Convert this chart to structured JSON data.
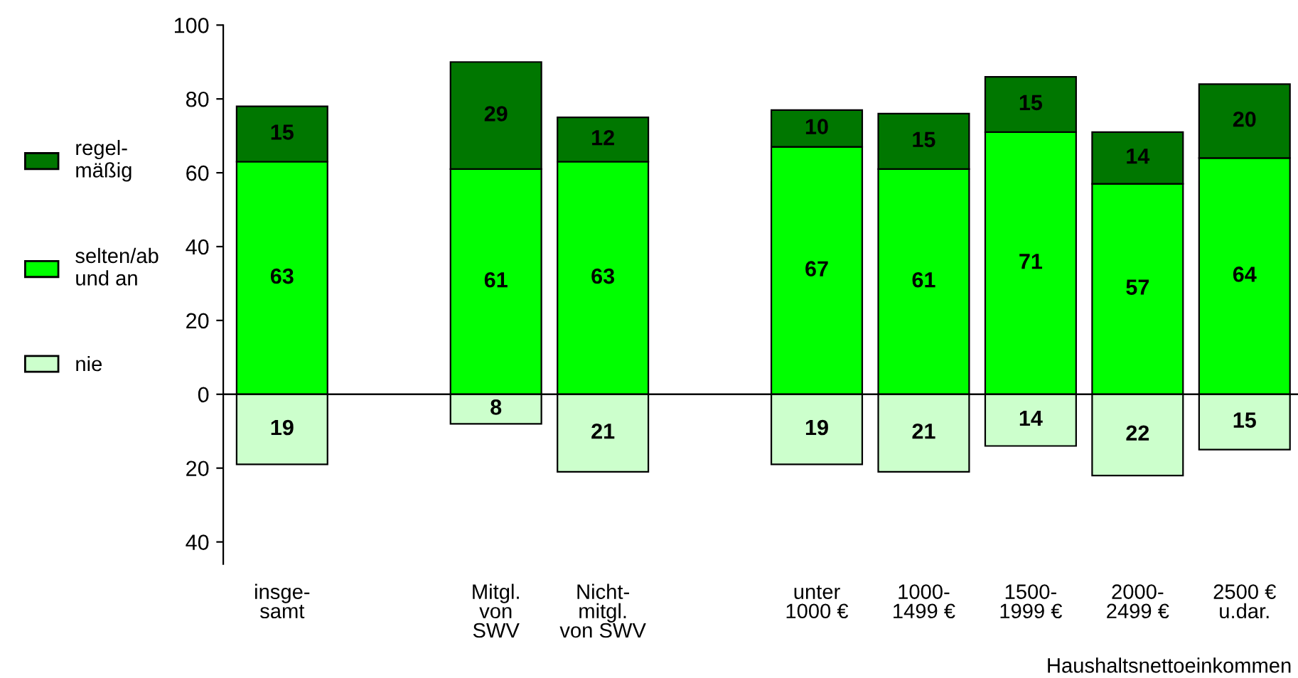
{
  "chart_data": {
    "type": "bar",
    "stacked": true,
    "categories": [
      "insge-\nsamt",
      null,
      "Mitgl.\nvon\nSWV",
      "Nicht-\nmitgl.\nvon SWV",
      null,
      "unter\n1000 €",
      "1000-\n1499 €",
      "1500-\n1999 €",
      "2000-\n2499 €",
      "2500 €\nu.dar."
    ],
    "series": [
      {
        "name": "nie",
        "color": "#ccffcc",
        "base": [
          -19,
          null,
          -8,
          -21,
          null,
          -19,
          -21,
          -14,
          -22,
          -15
        ],
        "values": [
          19,
          null,
          8,
          21,
          null,
          19,
          21,
          14,
          22,
          15
        ],
        "value_labels": [
          "19",
          null,
          "8",
          "21",
          null,
          "19",
          "21",
          "14",
          "22",
          "15"
        ]
      },
      {
        "name": "selten/ab\nund an",
        "color": "#00ff00",
        "values": [
          63,
          null,
          61,
          63,
          null,
          67,
          61,
          71,
          57,
          64
        ],
        "value_labels": [
          "63",
          null,
          "61",
          "63",
          null,
          "67",
          "61",
          "71",
          "57",
          "64"
        ]
      },
      {
        "name": "regel-\nmäßig",
        "color": "#007700",
        "values": [
          15,
          null,
          29,
          12,
          null,
          10,
          15,
          15,
          14,
          20
        ],
        "value_labels": [
          "15",
          null,
          "29",
          "12",
          null,
          "10",
          "15",
          "15",
          "14",
          "20"
        ]
      }
    ],
    "xlabel": "Haushaltsnettoeinkommen",
    "ylim": [
      -46,
      100
    ],
    "yticks": [
      {
        "value": -40,
        "label": "40"
      },
      {
        "value": -20,
        "label": "20"
      },
      0,
      20,
      40,
      60,
      80,
      100
    ],
    "ref_lines": [
      {
        "axis": "y",
        "value": 0,
        "color": "#000000"
      }
    ],
    "legend": "left",
    "grid": false
  }
}
